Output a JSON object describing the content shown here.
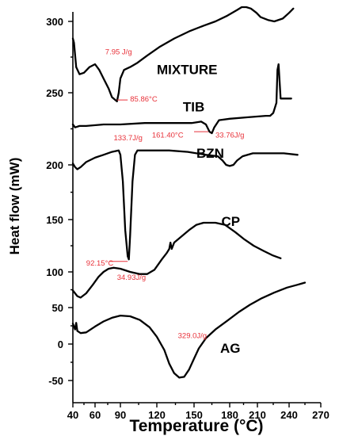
{
  "chart_data": {
    "type": "line",
    "xlabel": "Temperature (°C)",
    "ylabel": "Heat flow (mW)",
    "xlim": [
      40,
      270
    ],
    "ylim": [
      -55,
      315
    ],
    "x_ticks": [
      40,
      60,
      90,
      120,
      150,
      180,
      210,
      240,
      270
    ],
    "x_tick_labels": [
      "40",
      "60",
      "90",
      "120",
      "150",
      "180",
      "210",
      "240",
      "270"
    ],
    "y_ticks": [
      -50,
      0,
      50,
      100,
      150,
      200,
      250,
      300
    ],
    "y_tick_labels": [
      "-50",
      "0",
      "50",
      "100",
      "150",
      "200",
      "250",
      "300"
    ],
    "grid": false,
    "series": [
      {
        "name": "MIXTURE",
        "label_at": [
          120,
          263
        ],
        "points": [
          [
            40,
            288
          ],
          [
            41,
            285
          ],
          [
            43,
            268
          ],
          [
            46,
            263
          ],
          [
            50,
            264
          ],
          [
            55,
            268
          ],
          [
            60,
            270
          ],
          [
            65,
            266
          ],
          [
            70,
            260
          ],
          [
            76,
            253
          ],
          [
            80,
            247
          ],
          [
            84,
            245
          ],
          [
            86,
            244
          ],
          [
            88,
            250
          ],
          [
            90,
            260
          ],
          [
            93,
            266
          ],
          [
            98,
            268
          ],
          [
            104,
            271
          ],
          [
            112,
            276
          ],
          [
            122,
            282
          ],
          [
            134,
            288
          ],
          [
            146,
            293
          ],
          [
            158,
            297
          ],
          [
            168,
            300
          ],
          [
            178,
            304
          ],
          [
            188,
            308
          ],
          [
            193,
            310
          ],
          [
            198,
            310
          ],
          [
            203,
            309
          ],
          [
            209,
            306
          ],
          [
            213,
            303
          ],
          [
            220,
            301
          ],
          [
            226,
            300
          ],
          [
            234,
            302
          ],
          [
            240,
            306
          ],
          [
            244,
            309
          ]
        ]
      },
      {
        "name": "TIB",
        "label_at": [
          141,
          237
        ],
        "points": [
          [
            40,
            228
          ],
          [
            42,
            226
          ],
          [
            46,
            227
          ],
          [
            52,
            227
          ],
          [
            70,
            228
          ],
          [
            90,
            228
          ],
          [
            110,
            229
          ],
          [
            130,
            229
          ],
          [
            148,
            229
          ],
          [
            156,
            230
          ],
          [
            160,
            228
          ],
          [
            163,
            223
          ],
          [
            165,
            222
          ],
          [
            167,
            226
          ],
          [
            171,
            231
          ],
          [
            180,
            232
          ],
          [
            200,
            233
          ],
          [
            218,
            234
          ],
          [
            222,
            234
          ],
          [
            225,
            236
          ],
          [
            228,
            243
          ],
          [
            229,
            266
          ],
          [
            230,
            270
          ],
          [
            231,
            258
          ],
          [
            232,
            246
          ],
          [
            236,
            246
          ],
          [
            242,
            246
          ]
        ]
      },
      {
        "name": "BZN",
        "label_at": [
          152,
          205
        ],
        "points": [
          [
            40,
            201
          ],
          [
            42,
            198
          ],
          [
            44,
            196
          ],
          [
            47,
            198
          ],
          [
            52,
            202
          ],
          [
            60,
            205
          ],
          [
            70,
            207
          ],
          [
            80,
            209
          ],
          [
            88,
            210
          ],
          [
            90,
            207
          ],
          [
            92,
            185
          ],
          [
            94,
            140
          ],
          [
            96,
            115
          ],
          [
            97,
            112
          ],
          [
            98,
            135
          ],
          [
            100,
            185
          ],
          [
            102,
            207
          ],
          [
            104,
            210
          ],
          [
            115,
            210
          ],
          [
            130,
            210
          ],
          [
            145,
            209
          ],
          [
            160,
            207
          ],
          [
            170,
            206
          ],
          [
            174,
            203
          ],
          [
            177,
            200
          ],
          [
            180,
            199
          ],
          [
            184,
            200
          ],
          [
            188,
            203
          ],
          [
            194,
            206
          ],
          [
            205,
            208
          ],
          [
            220,
            208
          ],
          [
            235,
            208
          ],
          [
            248,
            207
          ]
        ]
      },
      {
        "name": "CP",
        "label_at": [
          173,
          144
        ],
        "points": [
          [
            40,
            74
          ],
          [
            42,
            70
          ],
          [
            44,
            66
          ],
          [
            47,
            64
          ],
          [
            52,
            70
          ],
          [
            58,
            82
          ],
          [
            64,
            93
          ],
          [
            70,
            100
          ],
          [
            76,
            103
          ],
          [
            82,
            104
          ],
          [
            90,
            103
          ],
          [
            98,
            100
          ],
          [
            106,
            97
          ],
          [
            112,
            97
          ],
          [
            118,
            102
          ],
          [
            124,
            112
          ],
          [
            128,
            118
          ],
          [
            130,
            122
          ],
          [
            131,
            128
          ],
          [
            132,
            122
          ],
          [
            134,
            128
          ],
          [
            140,
            134
          ],
          [
            146,
            140
          ],
          [
            152,
            145
          ],
          [
            158,
            147
          ],
          [
            168,
            147
          ],
          [
            176,
            145
          ],
          [
            186,
            138
          ],
          [
            196,
            131
          ],
          [
            206,
            125
          ],
          [
            216,
            120
          ],
          [
            224,
            116
          ],
          [
            232,
            113
          ]
        ]
      },
      {
        "name": "AG",
        "label_at": [
          172,
          -12
        ],
        "points": [
          [
            40,
            28
          ],
          [
            41,
            24
          ],
          [
            42,
            20
          ],
          [
            43,
            29
          ],
          [
            44,
            18
          ],
          [
            47,
            15
          ],
          [
            52,
            16
          ],
          [
            60,
            24
          ],
          [
            70,
            31
          ],
          [
            80,
            36
          ],
          [
            90,
            39
          ],
          [
            98,
            38
          ],
          [
            106,
            33
          ],
          [
            114,
            23
          ],
          [
            120,
            10
          ],
          [
            126,
            -8
          ],
          [
            130,
            -27
          ],
          [
            134,
            -40
          ],
          [
            138,
            -46
          ],
          [
            142,
            -45
          ],
          [
            146,
            -35
          ],
          [
            150,
            -20
          ],
          [
            154,
            -6
          ],
          [
            160,
            8
          ],
          [
            168,
            20
          ],
          [
            178,
            32
          ],
          [
            190,
            44
          ],
          [
            202,
            54
          ],
          [
            214,
            63
          ],
          [
            226,
            71
          ],
          [
            238,
            78
          ],
          [
            248,
            82
          ],
          [
            255,
            85
          ]
        ]
      }
    ],
    "annotations": [
      {
        "text": "7.95 J/g",
        "at": [
          72,
          277
        ]
      },
      {
        "text": "85.86°C",
        "at": [
          98,
          244
        ],
        "leader": [
          [
            86,
            245
          ],
          [
            96,
            245
          ]
        ]
      },
      {
        "text": "161.40°C",
        "at": [
          116,
          219
        ],
        "leader": [
          [
            150,
            223
          ],
          [
            162,
            223
          ]
        ]
      },
      {
        "text": "33.76J/g",
        "at": [
          168,
          219
        ]
      },
      {
        "text": "133.7J/g",
        "at": [
          82,
          217
        ]
      },
      {
        "text": "92.15°C",
        "at": [
          52,
          106
        ],
        "leader": [
          [
            77,
            110
          ],
          [
            96,
            110
          ]
        ]
      },
      {
        "text": "34.93J/g",
        "at": [
          86,
          89
        ]
      },
      {
        "text": "329.0J/g",
        "at": [
          137,
          8
        ]
      }
    ]
  }
}
